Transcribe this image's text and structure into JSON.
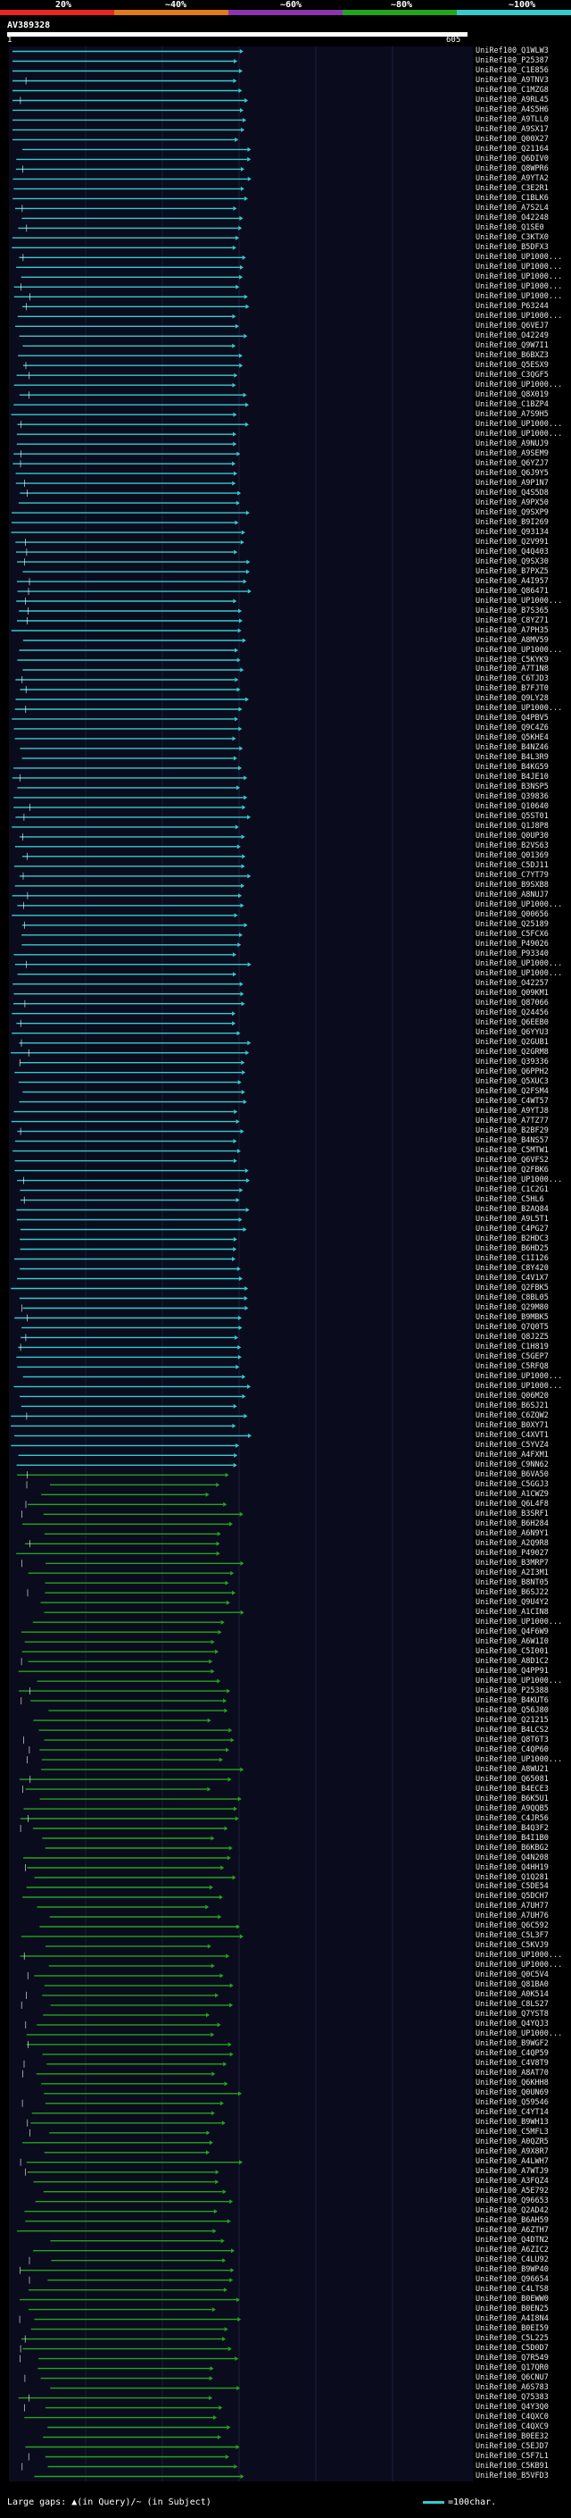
{
  "legend": {
    "ticks": [
      "20%",
      "~40%",
      "~60%",
      "~80%",
      "~100%"
    ],
    "colors": [
      "#e8261f",
      "#e07a1a",
      "#8b34b0",
      "#23a51d",
      "#33cccc"
    ]
  },
  "query": {
    "title": "AV389328",
    "scale_start": "1",
    "scale_end": "605"
  },
  "hits": [
    "UniRef100_Q1WLW3",
    "UniRef100_P25387",
    "UniRef100_C1E856",
    "UniRef100_A9TNV3",
    "UniRef100_C1MZG8",
    "UniRef100_A9RL45",
    "UniRef100_A4S5H6",
    "UniRef100_A9TLL0",
    "UniRef100_A9SX17",
    "UniRef100_Q00X27",
    "UniRef100_Q21164",
    "UniRef100_Q6DIV0",
    "UniRef100_Q8WPR6",
    "UniRef100_A9YTA2",
    "UniRef100_C3E2R1",
    "UniRef100_C1BLK6",
    "UniRef100_A7S2L4",
    "UniRef100_O42248",
    "UniRef100_Q1SE0",
    "UniRef100_C3KTX0",
    "UniRef100_B5DFX3",
    "UniRef100_UP1000...",
    "UniRef100_UP1000...",
    "UniRef100_UP1000...",
    "UniRef100_UP1000...",
    "UniRef100_UP1000...",
    "UniRef100_P63244",
    "UniRef100_UP1000...",
    "UniRef100_Q6VEJ7",
    "UniRef100_O42249",
    "UniRef100_Q9W7I1",
    "UniRef100_B6BXZ3",
    "UniRef100_Q5ESX9",
    "UniRef100_C3QGF5",
    "UniRef100_UP1000...",
    "UniRef100_Q8X019",
    "UniRef100_C1BZP4",
    "UniRef100_A7S9H5",
    "UniRef100_UP1000...",
    "UniRef100_UP1000...",
    "UniRef100_A9NUJ9",
    "UniRef100_A9SEM9",
    "UniRef100_Q6YZJ7",
    "UniRef100_Q6J9Y5",
    "UniRef100_A9P1N7",
    "UniRef100_Q4S5D8",
    "UniRef100_A9PX50",
    "UniRef100_Q9SXP9",
    "UniRef100_B9I269",
    "UniRef100_Q93134",
    "UniRef100_Q2V991",
    "UniRef100_Q4Q403",
    "UniRef100_Q9SX30",
    "UniRef100_B7PXZ5",
    "UniRef100_A4I957",
    "UniRef100_Q86471",
    "UniRef100_UP1000...",
    "UniRef100_B7S365",
    "UniRef100_C8YZ71",
    "UniRef100_A7PH35",
    "UniRef100_A8MV59",
    "UniRef100_UP1000...",
    "UniRef100_C5KYK9",
    "UniRef100_A7T1N8",
    "UniRef100_C6TJD3",
    "UniRef100_B7FJT0",
    "UniRef100_Q9LY28",
    "UniRef100_UP1000...",
    "UniRef100_Q4PBV5",
    "UniRef100_Q9C4Z6",
    "UniRef100_Q5KHE4",
    "UniRef100_B4NZ46",
    "UniRef100_B4L3R9",
    "UniRef100_B4KG59",
    "UniRef100_B4JE10",
    "UniRef100_B3NSP5",
    "UniRef100_Q39836",
    "UniRef100_Q10640",
    "UniRef100_Q5ST01",
    "UniRef100_Q1J8P8",
    "UniRef100_Q0UP30",
    "UniRef100_B2VS63",
    "UniRef100_Q01369",
    "UniRef100_C5DJ11",
    "UniRef100_C7YT79",
    "UniRef100_B9SXB8",
    "UniRef100_A8NUJ7",
    "UniRef100_UP1000...",
    "UniRef100_Q00656",
    "UniRef100_Q25189",
    "UniRef100_C5FCX6",
    "UniRef100_P49026",
    "UniRef100_P93340",
    "UniRef100_UP1000...",
    "UniRef100_UP1000...",
    "UniRef100_O42257",
    "UniRef100_Q09KM1",
    "UniRef100_Q87066",
    "UniRef100_Q24456",
    "UniRef100_Q6EEB0",
    "UniRef100_Q6YYU3",
    "UniRef100_Q2GUB1",
    "UniRef100_Q2GRM8",
    "UniRef100_Q39336",
    "UniRef100_Q6PPH2",
    "UniRef100_Q5XUC3",
    "UniRef100_Q2FSM4",
    "UniRef100_C4WT57",
    "UniRef100_A9YTJ8",
    "UniRef100_A7TZ77",
    "UniRef100_B2BF29",
    "UniRef100_B4NS57",
    "UniRef100_C5MTW1",
    "UniRef100_Q6VFS2",
    "UniRef100_Q2FBK6",
    "UniRef100_UP1000...",
    "UniRef100_C1C2G1",
    "UniRef100_C5HL6",
    "UniRef100_B2AQ84",
    "UniRef100_A9L5T1",
    "UniRef100_C4PG27",
    "UniRef100_B2HDC3",
    "UniRef100_B6HD25",
    "UniRef100_C1I126",
    "UniRef100_C8Y420",
    "UniRef100_C4V1X7",
    "UniRef100_Q2FBK5",
    "UniRef100_C8BL05",
    "UniRef100_Q29M80",
    "UniRef100_B9MBK5",
    "UniRef100_Q7Q0T5",
    "UniRef100_Q8J2Z5",
    "UniRef100_C1H819",
    "UniRef100_C5GEP7",
    "UniRef100_C5RFQ8",
    "UniRef100_UP1000...",
    "UniRef100_UP1000...",
    "UniRef100_Q06M20",
    "UniRef100_B6SJ21",
    "UniRef100_C6ZQW2",
    "UniRef100_B0XY71",
    "UniRef100_C4XVT1",
    "UniRef100_C5YVZ4",
    "UniRef100_A4FXM1",
    "UniRef100_C9NN62",
    "UniRef100_B6VA50",
    "UniRef100_C5GGJ3",
    "UniRef100_A1CWZ9",
    "UniRef100_Q6L4F8",
    "UniRef100_B3SRF1",
    "UniRef100_B6H284",
    "UniRef100_A6N9Y1",
    "UniRef100_A2Q9R8",
    "UniRef100_P49027",
    "UniRef100_B3MRP7",
    "UniRef100_A2I3M1",
    "UniRef100_B8NT05",
    "UniRef100_B6SJ22",
    "UniRef100_Q9U4Y2",
    "UniRef100_A1CIN8",
    "UniRef100_UP1000...",
    "UniRef100_Q4F6W9",
    "UniRef100_A6W1I0",
    "UniRef100_C5I001",
    "UniRef100_A8D1C2",
    "UniRef100_Q4PP91",
    "UniRef100_UP1000...",
    "UniRef100_P25388",
    "UniRef100_B4KUT6",
    "UniRef100_Q56J80",
    "UniRef100_Q21215",
    "UniRef100_B4LCS2",
    "UniRef100_Q8T6T3",
    "UniRef100_C4QP60",
    "UniRef100_UP1000...",
    "UniRef100_A8WU21",
    "UniRef100_Q65081",
    "UniRef100_B4ECE3",
    "UniRef100_B6K5U1",
    "UniRef100_A9QQB5",
    "UniRef100_C4JR56",
    "UniRef100_B4Q3F2",
    "UniRef100_B4I1B0",
    "UniRef100_B6KBG2",
    "UniRef100_Q4N208",
    "UniRef100_Q4HH19",
    "UniRef100_Q1Q281",
    "UniRef100_C5DE54",
    "UniRef100_Q5DCH7",
    "UniRef100_A7UH77",
    "UniRef100_A7UH76",
    "UniRef100_Q6C592",
    "UniRef100_C5L3F7",
    "UniRef100_C5KVJ9",
    "UniRef100_UP1000...",
    "UniRef100_UP1000...",
    "UniRef100_Q0C5V4",
    "UniRef100_Q81BA0",
    "UniRef100_A0K514",
    "UniRef100_C8LS27",
    "UniRef100_Q7YST8",
    "UniRef100_Q4YQJ3",
    "UniRef100_UP1000...",
    "UniRef100_B9WGF2",
    "UniRef100_C4QP59",
    "UniRef100_C4V8T9",
    "UniRef100_A8AT70",
    "UniRef100_Q6KHH8",
    "UniRef100_Q0UN69",
    "UniRef100_Q59546",
    "UniRef100_C4YT14",
    "UniRef100_B9WH13",
    "UniRef100_C5MFL3",
    "UniRef100_A0QZR5",
    "UniRef100_A9X8R7",
    "UniRef100_A4LWH7",
    "UniRef100_A7WTJ9",
    "UniRef100_A3FQZ4",
    "UniRef100_A5E792",
    "UniRef100_Q96653",
    "UniRef100_Q2AD42",
    "UniRef100_B6AH59",
    "UniRef100_A6ZTH7",
    "UniRef100_Q4DTN2",
    "UniRef100_A6ZIC2",
    "UniRef100_C4LU92",
    "UniRef100_B9WP40",
    "UniRef100_Q96654",
    "UniRef100_C4LTS8",
    "UniRef100_B0EWW0",
    "UniRef100_B0EN25",
    "UniRef100_A4I8N4",
    "UniRef100_B0EI59",
    "UniRef100_C5L225",
    "UniRef100_C5D0D7",
    "UniRef100_Q7R549",
    "UniRef100_Q17QR0",
    "UniRef100_Q6CNU7",
    "UniRef100_A6S783",
    "UniRef100_Q75383",
    "UniRef100_Q4Y3Q0",
    "UniRef100_C4QXC0",
    "UniRef100_C4QXC9",
    "UniRef100_B0EE32",
    "UniRef100_C5EJD7",
    "UniRef100_C5F7L1",
    "UniRef100_C5KB91",
    "UniRef100_B5VFD3"
  ],
  "footer": {
    "left_text": "Large gaps: ▲(in Query)/~ (in Subject)",
    "right_text": "=100char."
  }
}
